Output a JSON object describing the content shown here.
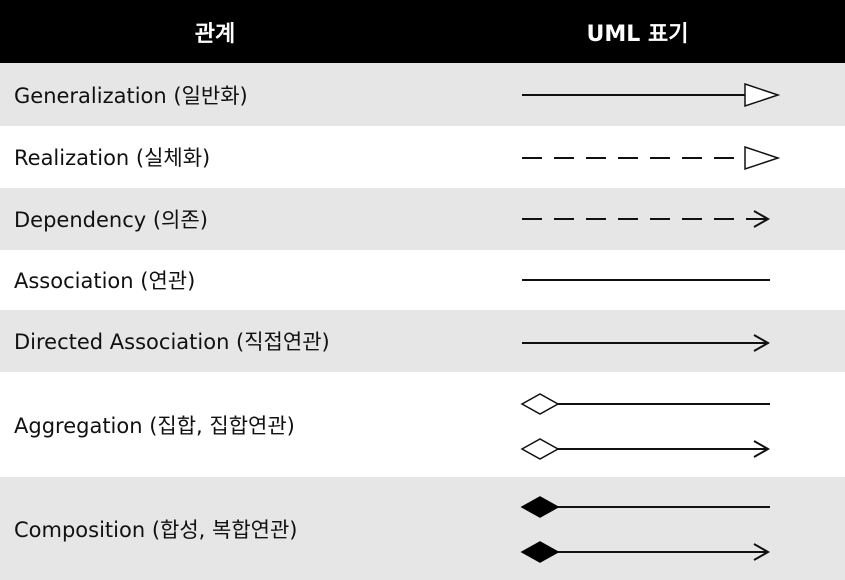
{
  "header": {
    "relation": "관계",
    "notation": "UML 표기"
  },
  "rows": [
    {
      "label": "Generalization (일반화)",
      "notation": "solid-line-hollow-triangle"
    },
    {
      "label": "Realization (실체화)",
      "notation": "dashed-line-hollow-triangle"
    },
    {
      "label": "Dependency (의존)",
      "notation": "dashed-line-open-arrow"
    },
    {
      "label": "Association (연관)",
      "notation": "solid-line"
    },
    {
      "label": "Directed Association (직접연관)",
      "notation": "solid-line-open-arrow"
    },
    {
      "label": "Aggregation (집합, 집합연관)",
      "notation": "hollow-diamond-line"
    },
    {
      "label": "Composition (합성, 복합연관)",
      "notation": "filled-diamond-line"
    }
  ],
  "colors": {
    "header_bg": "#000000",
    "header_text": "#ffffff",
    "row_shaded": "#e6e6e6",
    "row_plain": "#ffffff",
    "stroke": "#111111"
  }
}
